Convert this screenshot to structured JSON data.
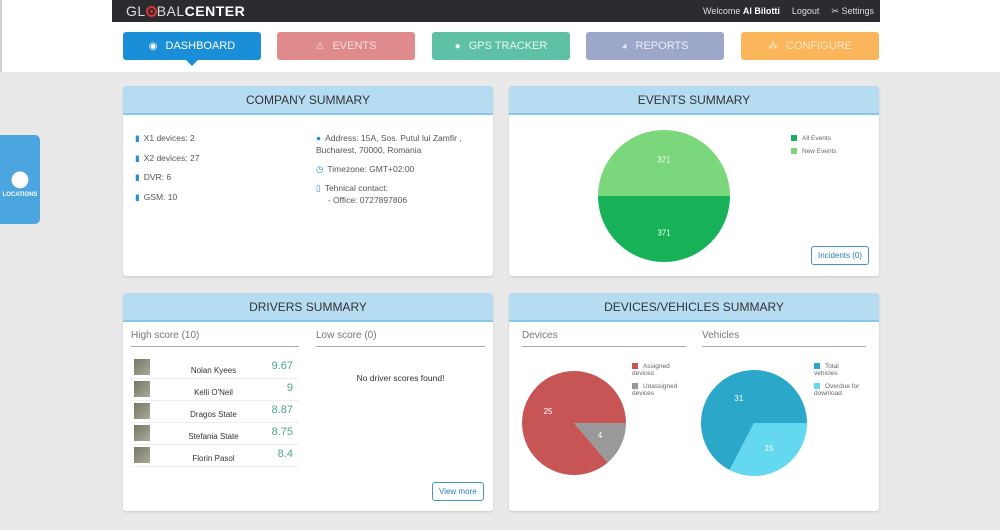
{
  "header": {
    "logo": "GLOBALCENTER",
    "welcome": "Welcome",
    "user": "Al Bilotti",
    "logout": "Logout",
    "settings": "Settings"
  },
  "nav": [
    {
      "label": "DASHBOARD",
      "icon": "dashboard-icon",
      "color": "#1a8ed6"
    },
    {
      "label": "EVENTS",
      "icon": "warning-icon",
      "color": "#e08b8b"
    },
    {
      "label": "GPS TRACKER",
      "icon": "map-pin-icon",
      "color": "#5ec1a6"
    },
    {
      "label": "REPORTS",
      "icon": "pie-icon",
      "color": "#9da7c9"
    },
    {
      "label": "CONFIGURE",
      "icon": "sitemap-icon",
      "color": "#fbb65c"
    }
  ],
  "side": {
    "label": "LOCATIONS"
  },
  "company": {
    "title": "COMPANY SUMMARY",
    "devices": [
      "X1 devices: 2",
      "X2 devices: 27",
      "DVR: 6",
      "GSM: 10"
    ],
    "address1": "Address: 15A, Sos. Putul lui Zamfir ,",
    "address2": "Bucharest, 70000, Romania",
    "timezone": "Timezone: GMT+02:00",
    "contact": "Tehnical contact:",
    "office": "- Office: 0727897806"
  },
  "events": {
    "title": "EVENTS SUMMARY",
    "incidents": "Incidents (0)"
  },
  "drivers": {
    "title": "DRIVERS SUMMARY",
    "high": "High score (10)",
    "low": "Low score (0)",
    "empty": "No driver scores found!",
    "view_more": "View more",
    "rows": [
      {
        "name": "Nolan Kyees",
        "score": "9.67"
      },
      {
        "name": "Kelli O'Neil",
        "score": "9"
      },
      {
        "name": "Dragos State",
        "score": "8.87"
      },
      {
        "name": "Stefania State",
        "score": "8.75"
      },
      {
        "name": "Florin Pasol",
        "score": "8.4"
      }
    ]
  },
  "devices": {
    "title": "DEVICES/VEHICLES SUMMARY",
    "devices_label": "Devices",
    "vehicles_label": "Vehicles"
  },
  "chart_data": [
    {
      "type": "pie",
      "name": "events",
      "legend": [
        "All Events",
        "New Events"
      ],
      "values": [
        371,
        371
      ],
      "colors": [
        "#17b157",
        "#7ad77b"
      ]
    },
    {
      "type": "pie",
      "name": "devices",
      "legend": [
        "Assigned devices",
        "Unassigned devices"
      ],
      "values": [
        25,
        4
      ],
      "colors": [
        "#c85555",
        "#999999"
      ]
    },
    {
      "type": "pie",
      "name": "vehicles",
      "legend": [
        "Total vehicles",
        "Overdue for download"
      ],
      "values": [
        31,
        15
      ],
      "colors": [
        "#2ba7c9",
        "#63d8ef"
      ]
    }
  ]
}
